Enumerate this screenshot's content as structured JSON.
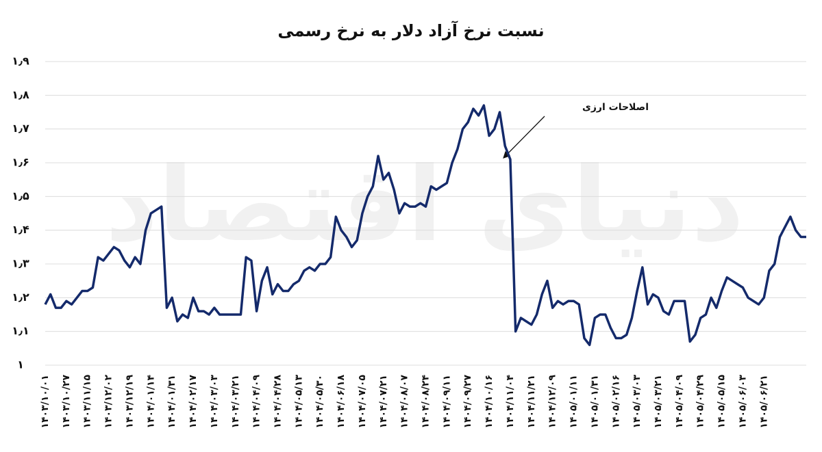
{
  "chart_data": {
    "type": "line",
    "title": "نسبت نرخ آزاد دلار به نرخ رسمی",
    "annotation": "اصلاحات ارزی",
    "watermark": "دنیای اقتصاد",
    "categories": [
      "۱۴۰۳/۱۰/۰۱",
      null,
      null,
      null,
      "۱۴۰۳/۱۰/۲۷",
      null,
      null,
      null,
      "۱۴۰۳/۱۱/۱۵",
      null,
      null,
      null,
      "۱۴۰۳/۱۲/۰۲",
      null,
      null,
      null,
      "۱۴۰۳/۱۲/۱۹",
      null,
      null,
      null,
      "۱۴۰۴/۰۱/۱۴",
      null,
      null,
      null,
      "۱۴۰۴/۰۱/۳۱",
      null,
      null,
      null,
      "۱۴۰۴/۰۲/۱۷",
      null,
      null,
      null,
      "۱۴۰۴/۰۳/۰۳",
      null,
      null,
      null,
      "۱۴۰۴/۰۳/۲۱",
      null,
      null,
      null,
      "۱۴۰۴/۰۴/۰۹",
      null,
      null,
      null,
      "۱۴۰۴/۰۴/۲۸",
      null,
      null,
      null,
      "۱۴۰۴/۰۵/۱۳",
      null,
      null,
      null,
      "۱۴۰۴/۰۵/۳۰",
      null,
      null,
      null,
      "۱۴۰۴/۰۶/۱۸",
      null,
      null,
      null,
      "۱۴۰۴/۰۷/۰۵",
      null,
      null,
      null,
      "۱۴۰۴/۰۷/۲۱",
      null,
      null,
      null,
      "۱۴۰۴/۰۸/۰۷",
      null,
      null,
      null,
      "۱۴۰۴/۰۸/۲۴",
      null,
      null,
      null,
      "۱۴۰۴/۰۹/۱۱",
      null,
      null,
      null,
      "۱۴۰۴/۰۹/۲۷",
      null,
      null,
      null,
      "۱۴۰۴/۱۰/۱۶",
      null,
      null,
      null,
      "۱۴۰۴/۱۱/۰۴",
      null,
      null,
      null,
      "۱۴۰۴/۱۱/۲۱",
      null,
      null,
      null,
      "۱۴۰۴/۱۲/۰۹",
      null,
      null,
      null,
      "۱۴۰۵/۰۱/۱۱",
      null,
      null,
      null,
      "۱۴۰۵/۰۱/۳۱",
      null,
      null,
      null,
      "۱۴۰۵/۰۲/۱۶",
      null,
      null,
      null,
      "۱۴۰۵/۰۳/۰۳",
      null,
      null,
      null,
      "۱۴۰۵/۰۳/۲۱",
      null,
      null,
      null,
      "۱۴۰۵/۰۴/۰۹",
      null,
      null,
      null,
      "۱۴۰۵/۰۴/۲۹",
      null,
      null,
      null,
      "۱۴۰۵/۰۵/۱۵",
      null,
      null,
      null,
      "۱۴۰۵/۰۶/۰۳",
      null,
      null,
      null,
      "۱۴۰۵/۰۶/۲۱",
      null,
      null,
      null,
      null,
      null,
      null,
      null,
      null
    ],
    "series": [
      {
        "color": "#142a6b",
        "values": [
          1.18,
          1.21,
          1.17,
          1.17,
          1.19,
          1.18,
          1.2,
          1.22,
          1.22,
          1.23,
          1.32,
          1.31,
          1.33,
          1.35,
          1.34,
          1.31,
          1.29,
          1.32,
          1.3,
          1.4,
          1.45,
          1.46,
          1.47,
          1.17,
          1.2,
          1.13,
          1.15,
          1.14,
          1.2,
          1.16,
          1.16,
          1.15,
          1.17,
          1.15,
          1.15,
          1.15,
          1.15,
          1.15,
          1.32,
          1.31,
          1.16,
          1.25,
          1.29,
          1.21,
          1.24,
          1.22,
          1.22,
          1.24,
          1.25,
          1.28,
          1.29,
          1.28,
          1.3,
          1.3,
          1.32,
          1.44,
          1.4,
          1.38,
          1.35,
          1.37,
          1.45,
          1.5,
          1.53,
          1.62,
          1.55,
          1.57,
          1.52,
          1.45,
          1.48,
          1.47,
          1.47,
          1.48,
          1.47,
          1.53,
          1.52,
          1.53,
          1.54,
          1.6,
          1.64,
          1.7,
          1.72,
          1.76,
          1.74,
          1.77,
          1.68,
          1.7,
          1.75,
          1.65,
          1.61,
          1.1,
          1.14,
          1.13,
          1.12,
          1.15,
          1.21,
          1.25,
          1.17,
          1.19,
          1.18,
          1.19,
          1.19,
          1.18,
          1.08,
          1.06,
          1.14,
          1.15,
          1.15,
          1.11,
          1.08,
          1.08,
          1.09,
          1.14,
          1.22,
          1.29,
          1.18,
          1.21,
          1.2,
          1.16,
          1.15,
          1.19,
          1.19,
          1.19,
          1.07,
          1.09,
          1.14,
          1.15,
          1.2,
          1.17,
          1.22,
          1.26,
          1.25,
          1.24,
          1.23,
          1.2,
          1.19,
          1.18,
          1.2,
          1.28,
          1.3,
          1.38,
          1.41,
          1.44,
          1.4,
          1.38,
          1.38
        ]
      }
    ],
    "ylim": [
      1,
      1.9
    ],
    "yticks": [
      {
        "value": 1,
        "label": "۱"
      },
      {
        "value": 1.1,
        "label": "۱٫۱"
      },
      {
        "value": 1.2,
        "label": "۱٫۲"
      },
      {
        "value": 1.3,
        "label": "۱٫۳"
      },
      {
        "value": 1.4,
        "label": "۱٫۴"
      },
      {
        "value": 1.5,
        "label": "۱٫۵"
      },
      {
        "value": 1.6,
        "label": "۱٫۶"
      },
      {
        "value": 1.7,
        "label": "۱٫۷"
      },
      {
        "value": 1.8,
        "label": "۱٫۸"
      },
      {
        "value": 1.9,
        "label": "۱٫۹"
      }
    ],
    "grid": true
  }
}
